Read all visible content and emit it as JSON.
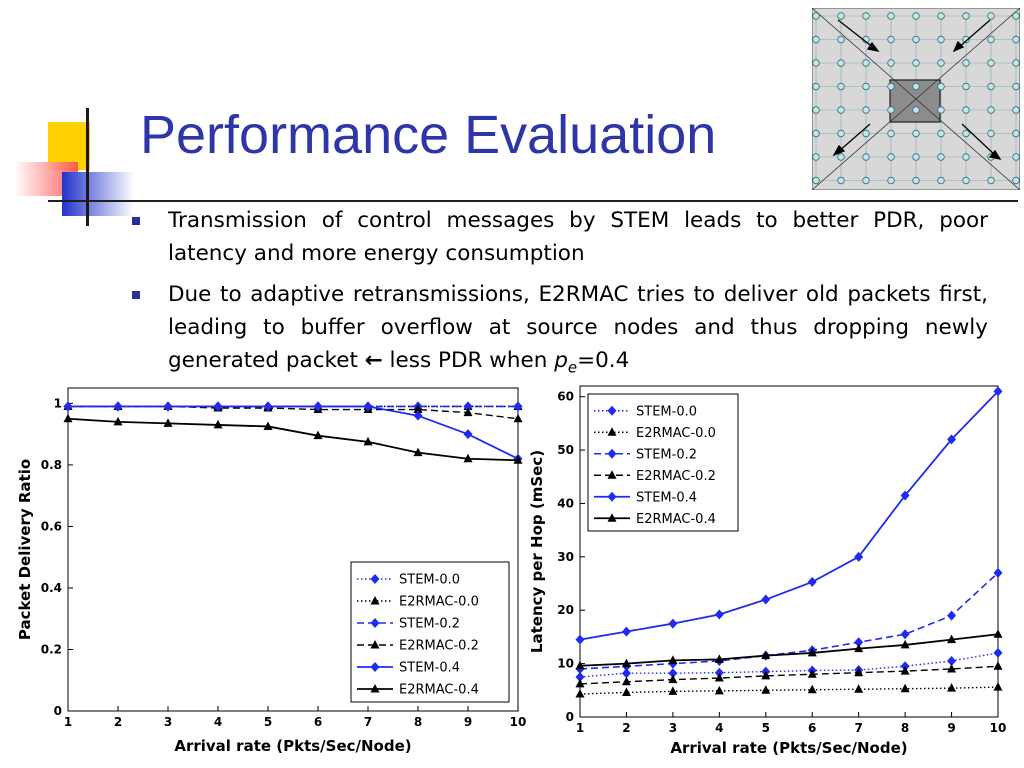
{
  "slide": {
    "title": "Performance Evaluation",
    "bullets": [
      {
        "text": "Transmission of control messages by STEM leads to better PDR, poor latency and more energy consumption"
      },
      {
        "text_before": "Due to adaptive retransmissions, E2RMAC tries to deliver old packets first, leading to buffer overflow at source nodes and thus dropping newly generated packet ",
        "arrow": "←",
        "text_mid": " less PDR when ",
        "var_p": "p",
        "var_sub": "e",
        "text_after": "=0.4"
      }
    ]
  },
  "colors": {
    "title": "#2e35a8",
    "bullet": "#2b2e9e",
    "stem": "#1f2cf0",
    "e2rmac": "#000000"
  },
  "chart_data": [
    {
      "type": "line",
      "title": "",
      "xlabel": "Arrival rate (Pkts/Sec/Node)",
      "ylabel": "Packet Delivery Ratio",
      "x": [
        1,
        2,
        3,
        4,
        5,
        6,
        7,
        8,
        9,
        10
      ],
      "xlim": [
        1,
        10
      ],
      "ylim": [
        0,
        1.05
      ],
      "yticks": [
        0,
        0.2,
        0.4,
        0.6,
        0.8,
        1
      ],
      "ytick_labels": [
        "0",
        "0.2",
        "0.4",
        "0.6",
        "0.8",
        "1"
      ],
      "legend_position": "bottom-right",
      "series": [
        {
          "name": "STEM-0.0",
          "values": [
            0.99,
            0.99,
            0.99,
            0.99,
            0.99,
            0.99,
            0.99,
            0.99,
            0.99,
            0.99
          ]
        },
        {
          "name": "E2RMAC-0.0",
          "values": [
            0.99,
            0.99,
            0.99,
            0.99,
            0.99,
            0.99,
            0.99,
            0.99,
            0.99,
            0.99
          ]
        },
        {
          "name": "STEM-0.2",
          "values": [
            0.99,
            0.99,
            0.99,
            0.99,
            0.99,
            0.99,
            0.99,
            0.99,
            0.99,
            0.99
          ]
        },
        {
          "name": "E2RMAC-0.2",
          "values": [
            0.99,
            0.99,
            0.99,
            0.985,
            0.985,
            0.98,
            0.98,
            0.98,
            0.97,
            0.95
          ]
        },
        {
          "name": "STEM-0.4",
          "values": [
            0.99,
            0.99,
            0.99,
            0.99,
            0.99,
            0.99,
            0.99,
            0.96,
            0.9,
            0.82
          ]
        },
        {
          "name": "E2RMAC-0.4",
          "values": [
            0.95,
            0.94,
            0.935,
            0.93,
            0.925,
            0.895,
            0.875,
            0.84,
            0.82,
            0.815
          ]
        }
      ]
    },
    {
      "type": "line",
      "title": "",
      "xlabel": "Arrival rate (Pkts/Sec/Node)",
      "ylabel": "Latency per Hop (mSec)",
      "x": [
        1,
        2,
        3,
        4,
        5,
        6,
        7,
        8,
        9,
        10
      ],
      "xlim": [
        1,
        10
      ],
      "ylim": [
        0,
        62
      ],
      "yticks": [
        0,
        10,
        20,
        30,
        40,
        50,
        60
      ],
      "ytick_labels": [
        "0",
        "10",
        "20",
        "30",
        "40",
        "50",
        "60"
      ],
      "legend_position": "top-left",
      "series": [
        {
          "name": "STEM-0.0",
          "values": [
            7.5,
            8.2,
            8.2,
            8.3,
            8.5,
            8.7,
            8.8,
            9.5,
            10.5,
            12
          ]
        },
        {
          "name": "E2RMAC-0.0",
          "values": [
            4.3,
            4.6,
            4.8,
            4.9,
            5,
            5.1,
            5.2,
            5.3,
            5.4,
            5.6
          ]
        },
        {
          "name": "STEM-0.2",
          "values": [
            9,
            9.5,
            10,
            10.5,
            11.5,
            12.5,
            14,
            15.5,
            19,
            27
          ]
        },
        {
          "name": "E2RMAC-0.2",
          "values": [
            6.2,
            6.6,
            7,
            7.3,
            7.7,
            8,
            8.3,
            8.6,
            9,
            9.5
          ]
        },
        {
          "name": "STEM-0.4",
          "values": [
            14.5,
            16,
            17.5,
            19.2,
            22,
            25.3,
            30,
            41.5,
            52,
            61
          ]
        },
        {
          "name": "E2RMAC-0.4",
          "values": [
            9.6,
            10,
            10.6,
            10.8,
            11.5,
            12,
            12.8,
            13.5,
            14.5,
            15.5
          ]
        }
      ]
    }
  ]
}
